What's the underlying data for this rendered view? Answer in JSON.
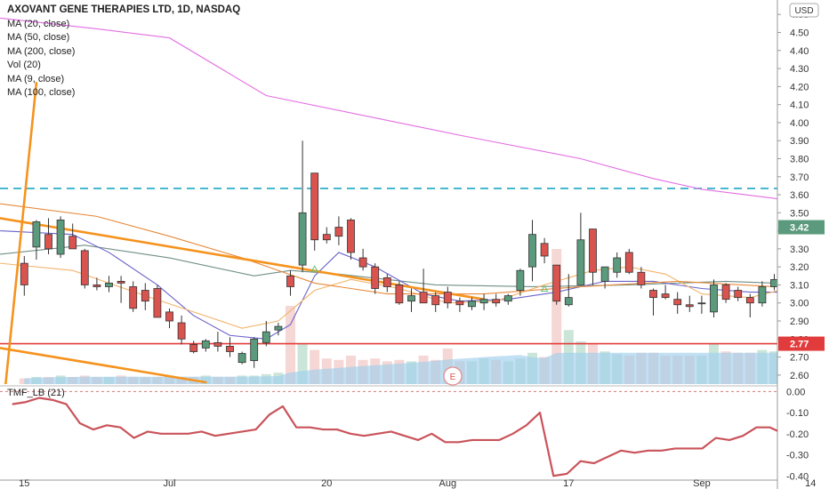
{
  "header": {
    "title": "AXOVANT GENE THERAPIES LTD, 1D, NASDAQ",
    "currency": "USD",
    "legend": [
      "MA (20, close)",
      "MA (50, close)",
      "MA (200, close)",
      "Vol (20)",
      "MA (9, close)",
      "MA (100, close)"
    ]
  },
  "indicator": {
    "label": "TMF_LB (21)"
  },
  "event_marker": "E",
  "colors": {
    "up": "#5b9a7c",
    "down": "#d9534f",
    "ma200": "#e36ee3",
    "ma20": "#6a63c9",
    "ma50": "#6f8f88",
    "ma9": "#f2b46b",
    "ma100": "#e8893a",
    "trend": "#f5931e",
    "support": "#e23b3b",
    "resistance": "#1ca8c5",
    "volume": "#9fd0ec",
    "tmf": "#c9535a"
  },
  "chart_data": {
    "type": "candlestick",
    "x_labels": [
      {
        "label": "15",
        "index": 1
      },
      {
        "label": "Jul",
        "index": 13
      },
      {
        "label": "20",
        "index": 26
      },
      {
        "label": "Aug",
        "index": 36
      },
      {
        "label": "17",
        "index": 46
      },
      {
        "label": "Sep",
        "index": 57
      },
      {
        "label": "14",
        "index": 66
      }
    ],
    "y_ticks": [
      "4.60",
      "4.50",
      "4.40",
      "4.30",
      "4.20",
      "4.10",
      "4.00",
      "3.90",
      "3.80",
      "3.70",
      "3.60",
      "3.50",
      "3.40",
      "3.30",
      "3.20",
      "3.10",
      "3.00",
      "2.90",
      "2.80",
      "2.70",
      "2.60"
    ],
    "ylim": [
      2.55,
      4.68
    ],
    "last_price": "3.42",
    "support_price": "2.77",
    "support_value": 2.774,
    "resistance_value": 3.635,
    "candles": [
      {
        "o": 3.22,
        "h": 3.26,
        "l": 3.04,
        "c": 3.1
      },
      {
        "o": 3.31,
        "h": 3.46,
        "l": 3.24,
        "c": 3.45
      },
      {
        "o": 3.38,
        "h": 3.47,
        "l": 3.27,
        "c": 3.3
      },
      {
        "o": 3.27,
        "h": 3.48,
        "l": 3.25,
        "c": 3.46
      },
      {
        "o": 3.37,
        "h": 3.44,
        "l": 3.3,
        "c": 3.3
      },
      {
        "o": 3.29,
        "h": 3.3,
        "l": 3.08,
        "c": 3.1
      },
      {
        "o": 3.1,
        "h": 3.14,
        "l": 3.07,
        "c": 3.09
      },
      {
        "o": 3.09,
        "h": 3.15,
        "l": 3.06,
        "c": 3.11
      },
      {
        "o": 3.12,
        "h": 3.15,
        "l": 3.0,
        "c": 3.11
      },
      {
        "o": 3.09,
        "h": 3.12,
        "l": 2.95,
        "c": 2.97
      },
      {
        "o": 3.07,
        "h": 3.11,
        "l": 2.96,
        "c": 3.01
      },
      {
        "o": 3.08,
        "h": 3.1,
        "l": 2.92,
        "c": 2.92
      },
      {
        "o": 2.95,
        "h": 2.97,
        "l": 2.86,
        "c": 2.9
      },
      {
        "o": 2.89,
        "h": 2.93,
        "l": 2.77,
        "c": 2.8
      },
      {
        "o": 2.77,
        "h": 2.79,
        "l": 2.72,
        "c": 2.73
      },
      {
        "o": 2.75,
        "h": 2.8,
        "l": 2.73,
        "c": 2.79
      },
      {
        "o": 2.78,
        "h": 2.84,
        "l": 2.73,
        "c": 2.76
      },
      {
        "o": 2.76,
        "h": 2.81,
        "l": 2.7,
        "c": 2.73
      },
      {
        "o": 2.67,
        "h": 2.73,
        "l": 2.66,
        "c": 2.72
      },
      {
        "o": 2.68,
        "h": 2.81,
        "l": 2.64,
        "c": 2.8
      },
      {
        "o": 2.78,
        "h": 2.9,
        "l": 2.76,
        "c": 2.84
      },
      {
        "o": 2.85,
        "h": 2.89,
        "l": 2.82,
        "c": 2.87
      },
      {
        "o": 3.15,
        "h": 3.18,
        "l": 3.04,
        "c": 3.09
      },
      {
        "o": 3.21,
        "h": 3.9,
        "l": 3.17,
        "c": 3.5
      },
      {
        "o": 3.72,
        "h": 3.72,
        "l": 3.29,
        "c": 3.35
      },
      {
        "o": 3.38,
        "h": 3.42,
        "l": 3.33,
        "c": 3.35
      },
      {
        "o": 3.42,
        "h": 3.48,
        "l": 3.32,
        "c": 3.37
      },
      {
        "o": 3.46,
        "h": 3.47,
        "l": 3.24,
        "c": 3.28
      },
      {
        "o": 3.25,
        "h": 3.3,
        "l": 3.18,
        "c": 3.2
      },
      {
        "o": 3.2,
        "h": 3.22,
        "l": 3.05,
        "c": 3.08
      },
      {
        "o": 3.14,
        "h": 3.16,
        "l": 3.06,
        "c": 3.09
      },
      {
        "o": 3.1,
        "h": 3.12,
        "l": 2.99,
        "c": 3.0
      },
      {
        "o": 3.01,
        "h": 3.08,
        "l": 2.95,
        "c": 3.04
      },
      {
        "o": 3.06,
        "h": 3.19,
        "l": 3.0,
        "c": 3.0
      },
      {
        "o": 3.04,
        "h": 3.06,
        "l": 2.95,
        "c": 2.99
      },
      {
        "o": 3.06,
        "h": 3.09,
        "l": 2.97,
        "c": 3.0
      },
      {
        "o": 3.01,
        "h": 3.03,
        "l": 2.95,
        "c": 2.99
      },
      {
        "o": 2.98,
        "h": 3.03,
        "l": 2.96,
        "c": 3.01
      },
      {
        "o": 3.0,
        "h": 3.05,
        "l": 2.96,
        "c": 3.02
      },
      {
        "o": 3.02,
        "h": 3.05,
        "l": 2.98,
        "c": 3.0
      },
      {
        "o": 3.01,
        "h": 3.05,
        "l": 2.99,
        "c": 3.04
      },
      {
        "o": 3.07,
        "h": 3.19,
        "l": 3.04,
        "c": 3.18
      },
      {
        "o": 3.2,
        "h": 3.46,
        "l": 3.12,
        "c": 3.38
      },
      {
        "o": 3.33,
        "h": 3.36,
        "l": 3.22,
        "c": 3.26
      },
      {
        "o": 3.21,
        "h": 3.21,
        "l": 2.99,
        "c": 3.01
      },
      {
        "o": 2.99,
        "h": 3.16,
        "l": 2.98,
        "c": 3.03
      },
      {
        "o": 3.1,
        "h": 3.5,
        "l": 3.1,
        "c": 3.35
      },
      {
        "o": 3.41,
        "h": 3.41,
        "l": 3.1,
        "c": 3.17
      },
      {
        "o": 3.12,
        "h": 3.18,
        "l": 3.08,
        "c": 3.2
      },
      {
        "o": 3.17,
        "h": 3.28,
        "l": 3.14,
        "c": 3.25
      },
      {
        "o": 3.28,
        "h": 3.3,
        "l": 3.16,
        "c": 3.17
      },
      {
        "o": 3.17,
        "h": 3.2,
        "l": 3.08,
        "c": 3.1
      },
      {
        "o": 3.07,
        "h": 3.08,
        "l": 2.93,
        "c": 3.03
      },
      {
        "o": 3.05,
        "h": 3.1,
        "l": 3.02,
        "c": 3.03
      },
      {
        "o": 3.02,
        "h": 3.06,
        "l": 2.94,
        "c": 2.99
      },
      {
        "o": 2.99,
        "h": 3.04,
        "l": 2.95,
        "c": 2.98
      },
      {
        "o": 3.0,
        "h": 3.04,
        "l": 2.94,
        "c": 3.0
      },
      {
        "o": 2.95,
        "h": 3.13,
        "l": 2.92,
        "c": 3.1
      },
      {
        "o": 3.1,
        "h": 3.11,
        "l": 3.0,
        "c": 3.02
      },
      {
        "o": 3.07,
        "h": 3.09,
        "l": 3.01,
        "c": 3.03
      },
      {
        "o": 3.03,
        "h": 3.05,
        "l": 2.92,
        "c": 3.0
      },
      {
        "o": 3.0,
        "h": 3.12,
        "l": 2.98,
        "c": 3.09
      },
      {
        "o": 3.09,
        "h": 3.16,
        "l": 3.07,
        "c": 3.13
      },
      {
        "o": 3.15,
        "h": 3.21,
        "l": 3.09,
        "c": 3.12
      },
      {
        "o": 3.13,
        "h": 3.36,
        "l": 3.09,
        "c": 3.11
      },
      {
        "o": 3.15,
        "h": 3.42,
        "l": 3.14,
        "c": 3.42
      }
    ],
    "volume": [
      0.04,
      0.05,
      0.05,
      0.06,
      0.05,
      0.06,
      0.05,
      0.05,
      0.06,
      0.05,
      0.05,
      0.05,
      0.06,
      0.05,
      0.05,
      0.06,
      0.05,
      0.05,
      0.06,
      0.06,
      0.07,
      0.08,
      0.55,
      0.28,
      0.24,
      0.18,
      0.17,
      0.2,
      0.17,
      0.18,
      0.16,
      0.17,
      0.16,
      0.2,
      0.17,
      0.25,
      0.16,
      0.16,
      0.18,
      0.17,
      0.16,
      0.18,
      0.22,
      0.19,
      0.95,
      0.38,
      0.3,
      0.28,
      0.23,
      0.21,
      0.2,
      0.22,
      0.22,
      0.2,
      0.2,
      0.2,
      0.2,
      0.28,
      0.23,
      0.22,
      0.22,
      0.24,
      0.23,
      0.24,
      0.4,
      0.35
    ],
    "ma_lines": {
      "ma200": [
        [
          -2,
          4.58
        ],
        [
          6,
          4.52
        ],
        [
          12,
          4.47
        ],
        [
          20,
          4.15
        ],
        [
          28,
          4.04
        ],
        [
          36,
          3.93
        ],
        [
          46,
          3.8
        ],
        [
          52,
          3.69
        ],
        [
          56,
          3.63
        ],
        [
          62,
          3.58
        ],
        [
          66,
          3.53
        ]
      ],
      "ma50": [
        [
          -2,
          3.27
        ],
        [
          5,
          3.32
        ],
        [
          12,
          3.25
        ],
        [
          19,
          3.15
        ],
        [
          22,
          3.18
        ],
        [
          26,
          3.16
        ],
        [
          34,
          3.1
        ],
        [
          42,
          3.09
        ],
        [
          50,
          3.1
        ],
        [
          58,
          3.12
        ],
        [
          66,
          3.1
        ]
      ],
      "ma20": [
        [
          -2,
          3.4
        ],
        [
          4,
          3.38
        ],
        [
          7,
          3.28
        ],
        [
          11,
          3.1
        ],
        [
          14,
          2.93
        ],
        [
          17,
          2.82
        ],
        [
          20,
          2.8
        ],
        [
          22,
          2.88
        ],
        [
          24,
          3.15
        ],
        [
          26,
          3.28
        ],
        [
          29,
          3.2
        ],
        [
          33,
          3.05
        ],
        [
          36,
          3.01
        ],
        [
          40,
          3.02
        ],
        [
          44,
          3.06
        ],
        [
          48,
          3.12
        ],
        [
          52,
          3.12
        ],
        [
          56,
          3.08
        ],
        [
          60,
          3.06
        ],
        [
          64,
          3.06
        ],
        [
          66,
          3.09
        ]
      ],
      "ma9": [
        [
          -2,
          3.22
        ],
        [
          4,
          3.18
        ],
        [
          10,
          3.04
        ],
        [
          14,
          2.95
        ],
        [
          18,
          2.86
        ],
        [
          21,
          2.9
        ],
        [
          24,
          3.07
        ],
        [
          27,
          3.13
        ],
        [
          31,
          3.08
        ],
        [
          35,
          3.0
        ],
        [
          39,
          3.01
        ],
        [
          43,
          3.1
        ],
        [
          47,
          3.18
        ],
        [
          50,
          3.2
        ],
        [
          53,
          3.16
        ],
        [
          56,
          3.05
        ],
        [
          60,
          3.03
        ],
        [
          63,
          3.08
        ],
        [
          66,
          3.12
        ]
      ],
      "ma100": [
        [
          -2,
          3.55
        ],
        [
          6,
          3.48
        ],
        [
          12,
          3.37
        ],
        [
          18,
          3.25
        ],
        [
          24,
          3.11
        ],
        [
          30,
          3.05
        ],
        [
          38,
          3.05
        ],
        [
          46,
          3.09
        ],
        [
          54,
          3.12
        ],
        [
          62,
          3.09
        ],
        [
          66,
          3.1
        ]
      ]
    },
    "trend_lines": [
      [
        [
          -2,
          3.47
        ],
        [
          38,
          3.02
        ]
      ],
      [
        [
          -2,
          2.75
        ],
        [
          15,
          2.56
        ]
      ],
      [
        [
          -2,
          2.25
        ],
        [
          1,
          4.22
        ]
      ]
    ],
    "triangles": [
      [
        24,
        3.19
      ],
      [
        43,
        3.08
      ]
    ],
    "tmf": {
      "ticks": [
        "0.00",
        "-0.10",
        "-0.20",
        "-0.30",
        "-0.40"
      ],
      "ylim": [
        -0.42,
        0.01
      ],
      "values": [
        -0.06,
        -0.05,
        -0.03,
        -0.04,
        -0.06,
        -0.15,
        -0.18,
        -0.16,
        -0.17,
        -0.22,
        -0.19,
        -0.2,
        -0.2,
        -0.2,
        -0.19,
        -0.21,
        -0.2,
        -0.19,
        -0.18,
        -0.11,
        -0.07,
        -0.17,
        -0.17,
        -0.18,
        -0.18,
        -0.2,
        -0.21,
        -0.2,
        -0.19,
        -0.21,
        -0.23,
        -0.2,
        -0.24,
        -0.24,
        -0.23,
        -0.23,
        -0.23,
        -0.2,
        -0.16,
        -0.1,
        -0.4,
        -0.39,
        -0.33,
        -0.34,
        -0.31,
        -0.28,
        -0.29,
        -0.28,
        -0.28,
        -0.27,
        -0.27,
        -0.27,
        -0.22,
        -0.23,
        -0.21,
        -0.17,
        -0.17,
        -0.2,
        -0.22,
        -0.12
      ]
    }
  }
}
